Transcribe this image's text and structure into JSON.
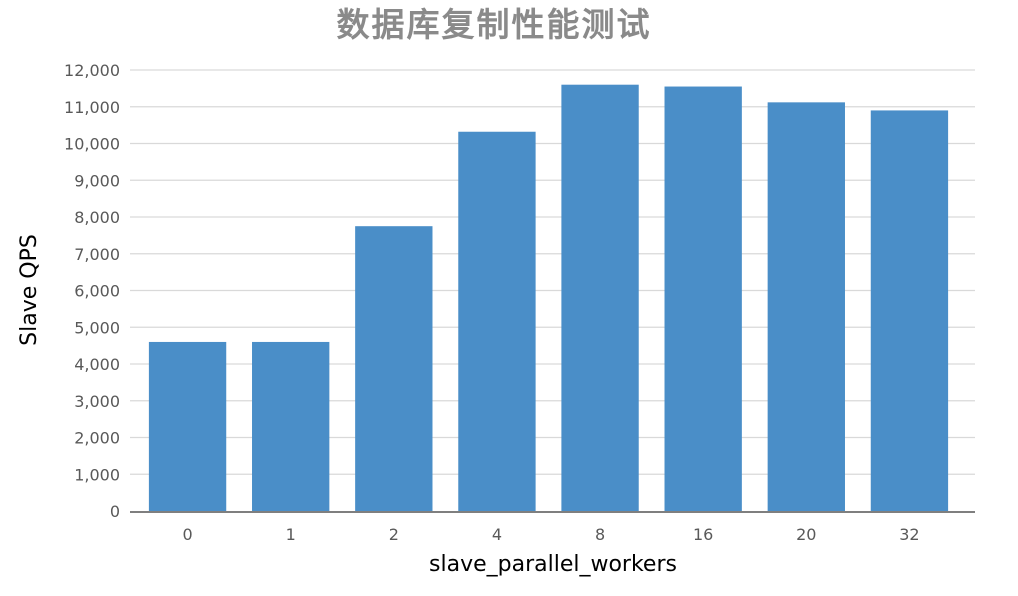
{
  "chart_data": {
    "type": "bar",
    "title": "数据库复制性能测试",
    "xlabel": "slave_parallel_workers",
    "ylabel": "Slave QPS",
    "categories": [
      "0",
      "1",
      "2",
      "4",
      "8",
      "16",
      "20",
      "32"
    ],
    "values": [
      4600,
      4600,
      7750,
      10320,
      11600,
      11550,
      11120,
      10900
    ],
    "ylim": [
      0,
      12000
    ],
    "yticks": [
      "0",
      "1,000",
      "2,000",
      "3,000",
      "4,000",
      "5,000",
      "6,000",
      "7,000",
      "8,000",
      "9,000",
      "10,000",
      "11,000",
      "12,000"
    ],
    "grid": true,
    "legend": "none",
    "colors": {
      "bar": "#4a8ec8",
      "grid": "#d9d9d9",
      "axis": "#7f7f7f",
      "title": "#8a8a8a"
    }
  }
}
